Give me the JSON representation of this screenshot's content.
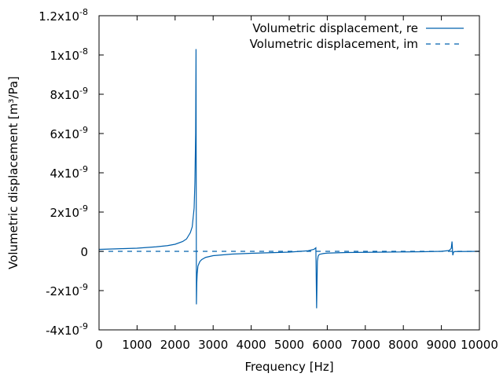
{
  "chart_data": {
    "type": "line",
    "xlabel": "Frequency [Hz]",
    "ylabel": "Volumetric displacement [m³/Pa]",
    "xlim": [
      0,
      10000
    ],
    "ylim": [
      -4e-09,
      1.2e-08
    ],
    "grid": false,
    "legend_position": "top-right",
    "x_ticks": [
      {
        "value": 0,
        "label": "0"
      },
      {
        "value": 1000,
        "label": "1000"
      },
      {
        "value": 2000,
        "label": "2000"
      },
      {
        "value": 3000,
        "label": "3000"
      },
      {
        "value": 4000,
        "label": "4000"
      },
      {
        "value": 5000,
        "label": "5000"
      },
      {
        "value": 6000,
        "label": "6000"
      },
      {
        "value": 7000,
        "label": "7000"
      },
      {
        "value": 8000,
        "label": "8000"
      },
      {
        "value": 9000,
        "label": "9000"
      },
      {
        "value": 10000,
        "label": "10000"
      }
    ],
    "y_ticks": [
      {
        "value": -4e-09,
        "mant": "-4x10",
        "exp": "-9"
      },
      {
        "value": -2e-09,
        "mant": "-2x10",
        "exp": "-9"
      },
      {
        "value": 0,
        "mant": "0",
        "exp": ""
      },
      {
        "value": 2e-09,
        "mant": "2x10",
        "exp": "-9"
      },
      {
        "value": 4e-09,
        "mant": "4x10",
        "exp": "-9"
      },
      {
        "value": 6e-09,
        "mant": "6x10",
        "exp": "-9"
      },
      {
        "value": 8e-09,
        "mant": "8x10",
        "exp": "-9"
      },
      {
        "value": 1e-08,
        "mant": "1x10",
        "exp": "-8"
      },
      {
        "value": 1.2e-08,
        "mant": "1.2x10",
        "exp": "-8"
      }
    ],
    "series": [
      {
        "name": "Volumetric displacement, re",
        "color": "#0060ad",
        "dash": "solid",
        "x": [
          0,
          500,
          1000,
          1500,
          1800,
          2000,
          2200,
          2300,
          2400,
          2450,
          2500,
          2520,
          2540,
          2550,
          2560,
          2570,
          2580,
          2600,
          2650,
          2700,
          2800,
          3000,
          3500,
          4000,
          4500,
          5000,
          5300,
          5500,
          5650,
          5700,
          5720,
          5740,
          5760,
          5780,
          5800,
          5900,
          6000,
          6500,
          7000,
          7500,
          8000,
          8500,
          9000,
          9200,
          9260,
          9280,
          9300,
          9320,
          9350,
          9500,
          10000
        ],
        "y": [
          1e-10,
          1.3e-10,
          1.6e-10,
          2.3e-10,
          2.9e-10,
          3.6e-10,
          5e-10,
          6.3e-10,
          9.5e-10,
          1.25e-09,
          2.2e-09,
          3.5e-09,
          6e-09,
          1.03e-08,
          -2.7e-09,
          -1.6e-09,
          -1.15e-09,
          -7.5e-10,
          -5.2e-10,
          -4.2e-10,
          -3.1e-10,
          -2.2e-10,
          -1.4e-10,
          -1e-10,
          -7e-11,
          -4e-11,
          0.0,
          3e-11,
          1e-10,
          1.8e-10,
          -2.9e-09,
          -5e-10,
          -2.5e-10,
          -1.8e-10,
          -1.5e-10,
          -1.1e-10,
          -9e-11,
          -6e-11,
          -5e-11,
          -4e-11,
          -3e-11,
          -2e-11,
          0.0,
          4e-11,
          1.5e-10,
          5e-10,
          -2e-10,
          -4e-11,
          -1e-11,
          -1e-11,
          0.0
        ]
      },
      {
        "name": "Volumetric displacement, im",
        "color": "#0060ad",
        "dash": "dashed",
        "x": [
          0,
          2000,
          4000,
          6000,
          8000,
          10000
        ],
        "y": [
          0,
          0,
          0,
          0,
          0,
          0
        ]
      }
    ]
  }
}
